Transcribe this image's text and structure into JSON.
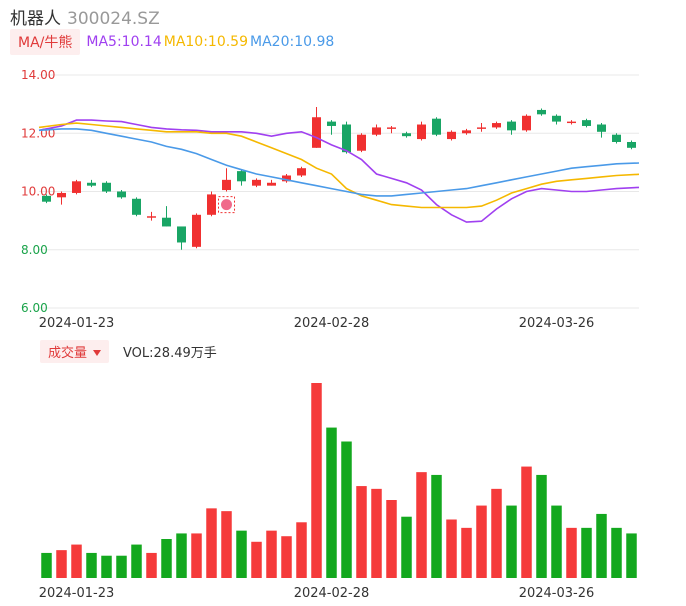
{
  "header": {
    "name": "机器人",
    "code": "300024.SZ"
  },
  "ma_legend": {
    "toggle_label": "MA/牛熊",
    "items": [
      {
        "label": "MA5:10.14",
        "color": "#a040f0"
      },
      {
        "label": "MA10:10.59",
        "color": "#f5b800"
      },
      {
        "label": "MA20:10.98",
        "color": "#4a9ae8"
      }
    ]
  },
  "volume_legend": {
    "toggle_label": "成交量",
    "value_label": "VOL:28.49万手"
  },
  "colors": {
    "up": "#f03030",
    "down": "#19a565",
    "vol_up": "#f53a3a",
    "vol_down": "#13a81e",
    "grid": "#e8e8e8"
  },
  "chart_data": [
    {
      "type": "candlestick",
      "y_ticks": [
        "14.00",
        "12.00",
        "10.00",
        "8.00",
        "6.00"
      ],
      "ylim": [
        6,
        14
      ],
      "x_ticks": [
        {
          "label": "2024-01-23",
          "index": 2
        },
        {
          "label": "2024-02-28",
          "index": 19
        },
        {
          "label": "2024-03-26",
          "index": 34
        }
      ],
      "candles": [
        {
          "o": 9.85,
          "c": 9.65,
          "h": 9.9,
          "l": 9.6
        },
        {
          "o": 9.8,
          "c": 9.95,
          "h": 10.0,
          "l": 9.55
        },
        {
          "o": 9.95,
          "c": 10.35,
          "h": 10.4,
          "l": 9.9
        },
        {
          "o": 10.3,
          "c": 10.2,
          "h": 10.4,
          "l": 10.15
        },
        {
          "o": 10.3,
          "c": 10.0,
          "h": 10.35,
          "l": 9.95
        },
        {
          "o": 10.0,
          "c": 9.8,
          "h": 10.05,
          "l": 9.75
        },
        {
          "o": 9.75,
          "c": 9.2,
          "h": 9.8,
          "l": 9.15
        },
        {
          "o": 9.1,
          "c": 9.15,
          "h": 9.3,
          "l": 9.0
        },
        {
          "o": 9.1,
          "c": 8.8,
          "h": 9.5,
          "l": 8.8
        },
        {
          "o": 8.8,
          "c": 8.25,
          "h": 8.8,
          "l": 8.0
        },
        {
          "o": 8.1,
          "c": 9.2,
          "h": 9.25,
          "l": 8.05
        },
        {
          "o": 9.2,
          "c": 9.9,
          "h": 10.0,
          "l": 9.15
        },
        {
          "o": 10.05,
          "c": 10.4,
          "h": 10.8,
          "l": 10.0
        },
        {
          "o": 10.7,
          "c": 10.35,
          "h": 10.75,
          "l": 10.2
        },
        {
          "o": 10.2,
          "c": 10.4,
          "h": 10.45,
          "l": 10.15
        },
        {
          "o": 10.2,
          "c": 10.3,
          "h": 10.4,
          "l": 10.2
        },
        {
          "o": 10.35,
          "c": 10.55,
          "h": 10.6,
          "l": 10.3
        },
        {
          "o": 10.55,
          "c": 10.8,
          "h": 10.85,
          "l": 10.5
        },
        {
          "o": 11.5,
          "c": 12.55,
          "h": 12.9,
          "l": 11.5
        },
        {
          "o": 12.4,
          "c": 12.25,
          "h": 12.45,
          "l": 11.95
        },
        {
          "o": 12.3,
          "c": 11.35,
          "h": 12.4,
          "l": 11.3
        },
        {
          "o": 11.4,
          "c": 11.95,
          "h": 12.0,
          "l": 11.35
        },
        {
          "o": 11.95,
          "c": 12.2,
          "h": 12.3,
          "l": 11.9
        },
        {
          "o": 12.15,
          "c": 12.2,
          "h": 12.25,
          "l": 12.0
        },
        {
          "o": 12.0,
          "c": 11.9,
          "h": 12.05,
          "l": 11.85
        },
        {
          "o": 11.8,
          "c": 12.3,
          "h": 12.4,
          "l": 11.75
        },
        {
          "o": 12.5,
          "c": 11.95,
          "h": 12.55,
          "l": 11.9
        },
        {
          "o": 11.8,
          "c": 12.05,
          "h": 12.1,
          "l": 11.75
        },
        {
          "o": 12.0,
          "c": 12.1,
          "h": 12.15,
          "l": 11.95
        },
        {
          "o": 12.15,
          "c": 12.2,
          "h": 12.35,
          "l": 12.05
        },
        {
          "o": 12.2,
          "c": 12.35,
          "h": 12.4,
          "l": 12.15
        },
        {
          "o": 12.4,
          "c": 12.1,
          "h": 12.45,
          "l": 11.95
        },
        {
          "o": 12.1,
          "c": 12.6,
          "h": 12.65,
          "l": 12.05
        },
        {
          "o": 12.8,
          "c": 12.65,
          "h": 12.85,
          "l": 12.6
        },
        {
          "o": 12.6,
          "c": 12.4,
          "h": 12.65,
          "l": 12.3
        },
        {
          "o": 12.35,
          "c": 12.4,
          "h": 12.45,
          "l": 12.3
        },
        {
          "o": 12.45,
          "c": 12.25,
          "h": 12.5,
          "l": 12.2
        },
        {
          "o": 12.3,
          "c": 12.05,
          "h": 12.35,
          "l": 11.85
        },
        {
          "o": 11.95,
          "c": 11.7,
          "h": 12.0,
          "l": 11.65
        },
        {
          "o": 11.7,
          "c": 11.5,
          "h": 11.75,
          "l": 11.45
        }
      ],
      "ma_series": [
        {
          "label": "MA5",
          "color": "#a040f0",
          "values": [
            12.1,
            12.25,
            12.45,
            12.45,
            12.42,
            12.4,
            12.3,
            12.2,
            12.15,
            12.12,
            12.1,
            12.05,
            12.05,
            12.05,
            12.0,
            11.9,
            12.0,
            12.05,
            11.85,
            11.6,
            11.4,
            11.1,
            10.6,
            10.45,
            10.3,
            10.05,
            9.55,
            9.2,
            8.95,
            8.98,
            9.4,
            9.75,
            10.0,
            10.1,
            10.05,
            10.0,
            10.0,
            10.05,
            10.1,
            10.14
          ]
        },
        {
          "label": "MA10",
          "color": "#f5b800",
          "values": [
            12.2,
            12.3,
            12.35,
            12.3,
            12.25,
            12.2,
            12.15,
            12.1,
            12.05,
            12.05,
            12.05,
            12.0,
            12.0,
            11.9,
            11.7,
            11.5,
            11.3,
            11.1,
            10.8,
            10.6,
            10.1,
            9.85,
            9.7,
            9.55,
            9.5,
            9.45,
            9.45,
            9.45,
            9.45,
            9.5,
            9.7,
            9.95,
            10.1,
            10.25,
            10.35,
            10.4,
            10.45,
            10.5,
            10.55,
            10.59
          ]
        },
        {
          "label": "MA20",
          "color": "#4a9ae8",
          "values": [
            12.1,
            12.15,
            12.15,
            12.1,
            12.0,
            11.9,
            11.8,
            11.7,
            11.55,
            11.45,
            11.3,
            11.1,
            10.9,
            10.75,
            10.6,
            10.5,
            10.4,
            10.3,
            10.2,
            10.1,
            10.0,
            9.9,
            9.85,
            9.85,
            9.9,
            9.95,
            10.0,
            10.05,
            10.1,
            10.2,
            10.3,
            10.4,
            10.5,
            10.6,
            10.7,
            10.8,
            10.85,
            10.9,
            10.95,
            10.98
          ]
        }
      ]
    },
    {
      "type": "bar",
      "series_name": "VOL",
      "volumes": [
        9,
        10,
        12,
        9,
        8,
        8,
        12,
        9,
        14,
        16,
        16,
        25,
        24,
        17,
        13,
        17,
        15,
        20,
        70,
        54,
        49,
        33,
        32,
        28,
        22,
        38,
        37,
        21,
        18,
        26,
        32,
        26,
        40,
        37,
        26,
        18,
        18,
        23,
        18,
        16
      ]
    }
  ]
}
